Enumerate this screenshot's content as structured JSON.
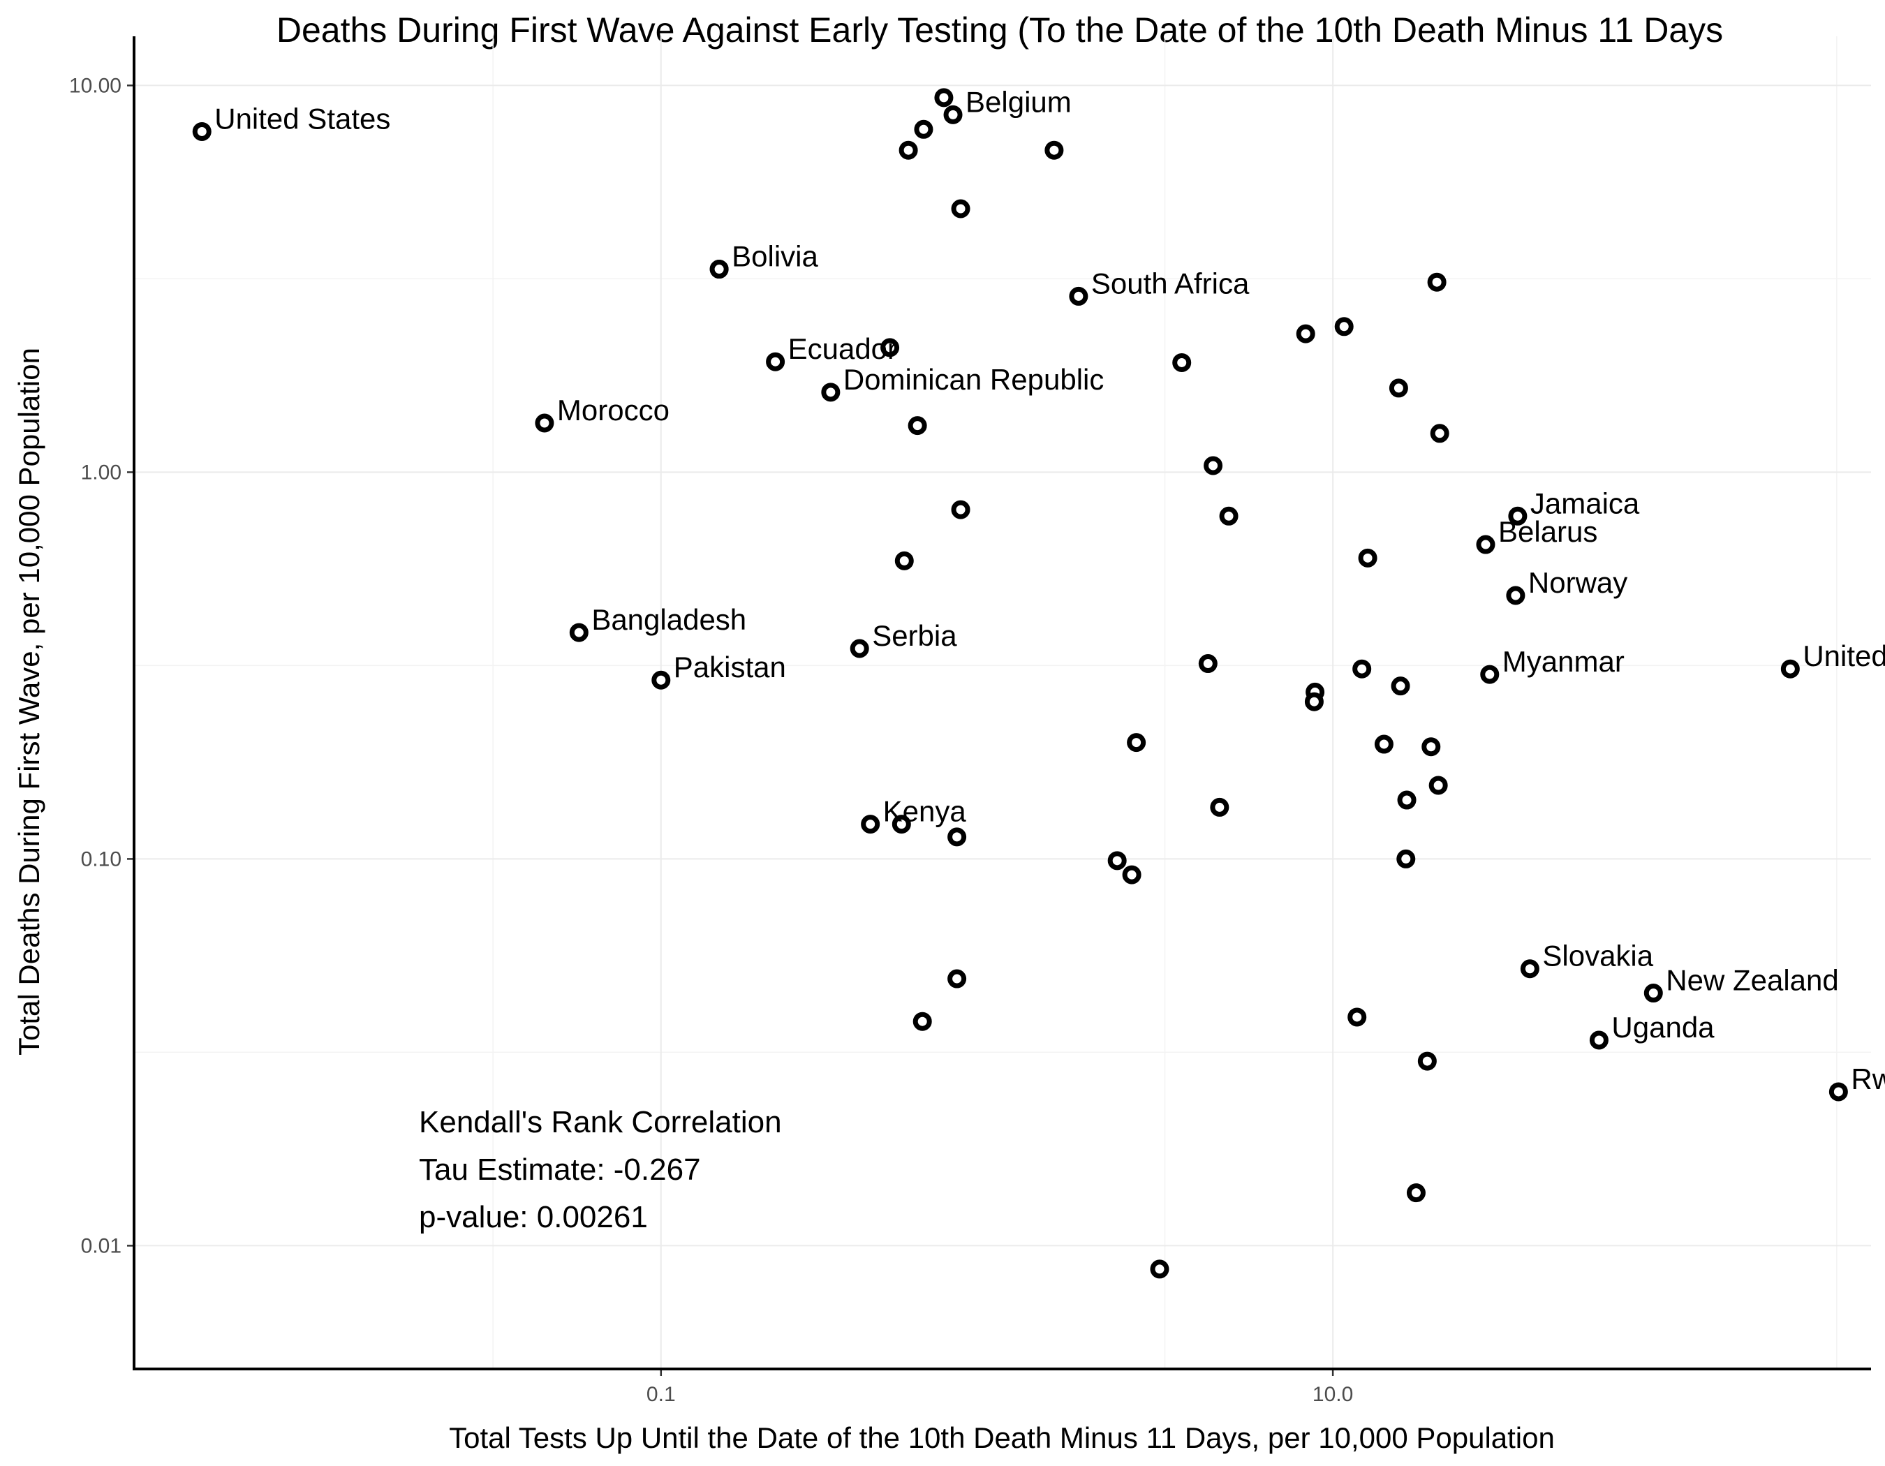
{
  "chart_data": {
    "type": "scatter",
    "title": "Deaths During First Wave Against  Early Testing (To the Date of the 10th Death Minus 11 Days",
    "xlabel": "Total Tests Up Until the Date of the 10th Death Minus 11 Days, per 10,000 Population",
    "ylabel": "Total Deaths During First Wave, per 10,000 Population",
    "x_scale": "log10",
    "y_scale": "log10",
    "xlim": [
      0.0027,
      400
    ],
    "ylim": [
      0.0048,
      13.4
    ],
    "x_ticks": [
      {
        "value": 0.1,
        "label": "0.1"
      },
      {
        "value": 10,
        "label": "10.0"
      }
    ],
    "y_ticks": [
      {
        "value": 0.01,
        "label": "0.01"
      },
      {
        "value": 0.1,
        "label": "0.10"
      },
      {
        "value": 1,
        "label": "1.00"
      },
      {
        "value": 10,
        "label": "10.00"
      }
    ],
    "grid": true,
    "annotation": {
      "lines": [
        "Kendall's Rank Correlation",
        "Tau Estimate: -0.267",
        "p-value: 0.00261"
      ]
    },
    "points": [
      {
        "x": 0.0043,
        "y": 7.6,
        "label": "United States"
      },
      {
        "x": 0.149,
        "y": 3.35,
        "label": "Bolivia"
      },
      {
        "x": 0.219,
        "y": 1.93,
        "label": "Ecuador"
      },
      {
        "x": 0.32,
        "y": 1.61,
        "label": "Dominican Republic"
      },
      {
        "x": 0.045,
        "y": 1.34,
        "label": "Morocco"
      },
      {
        "x": 0.057,
        "y": 0.385,
        "label": "Bangladesh"
      },
      {
        "x": 0.1,
        "y": 0.29,
        "label": "Pakistan"
      },
      {
        "x": 0.39,
        "y": 0.35,
        "label": "Serbia"
      },
      {
        "x": 0.42,
        "y": 0.123,
        "label": "Kenya"
      },
      {
        "x": 0.149,
        "y": 3.35,
        "label": ""
      },
      {
        "x": 0.695,
        "y": 9.3,
        "label": ""
      },
      {
        "x": 0.74,
        "y": 8.4,
        "label": "Belgium"
      },
      {
        "x": 0.605,
        "y": 7.7,
        "label": ""
      },
      {
        "x": 0.545,
        "y": 6.8,
        "label": ""
      },
      {
        "x": 1.48,
        "y": 6.8,
        "label": ""
      },
      {
        "x": 0.78,
        "y": 4.8,
        "label": ""
      },
      {
        "x": 1.75,
        "y": 2.85,
        "label": "South Africa"
      },
      {
        "x": 20.4,
        "y": 3.1,
        "label": ""
      },
      {
        "x": 10.8,
        "y": 2.38,
        "label": ""
      },
      {
        "x": 8.3,
        "y": 2.28,
        "label": ""
      },
      {
        "x": 0.48,
        "y": 2.1,
        "label": ""
      },
      {
        "x": 3.55,
        "y": 1.92,
        "label": ""
      },
      {
        "x": 15.7,
        "y": 1.65,
        "label": ""
      },
      {
        "x": 0.58,
        "y": 1.32,
        "label": ""
      },
      {
        "x": 20.8,
        "y": 1.26,
        "label": ""
      },
      {
        "x": 4.4,
        "y": 1.04,
        "label": ""
      },
      {
        "x": 0.78,
        "y": 0.8,
        "label": ""
      },
      {
        "x": 4.9,
        "y": 0.77,
        "label": ""
      },
      {
        "x": 35.5,
        "y": 0.77,
        "label": "Jamaica"
      },
      {
        "x": 28.5,
        "y": 0.65,
        "label": "Belarus"
      },
      {
        "x": 12.7,
        "y": 0.6,
        "label": ""
      },
      {
        "x": 0.53,
        "y": 0.59,
        "label": ""
      },
      {
        "x": 35.0,
        "y": 0.48,
        "label": "Norway"
      },
      {
        "x": 4.25,
        "y": 0.32,
        "label": ""
      },
      {
        "x": 12.2,
        "y": 0.31,
        "label": ""
      },
      {
        "x": 29.3,
        "y": 0.3,
        "label": "Myanmar"
      },
      {
        "x": 230,
        "y": 0.31,
        "label": "United"
      },
      {
        "x": 8.85,
        "y": 0.27,
        "label": ""
      },
      {
        "x": 15.9,
        "y": 0.28,
        "label": ""
      },
      {
        "x": 8.8,
        "y": 0.255,
        "label": ""
      },
      {
        "x": 2.6,
        "y": 0.2,
        "label": ""
      },
      {
        "x": 14.2,
        "y": 0.198,
        "label": ""
      },
      {
        "x": 19.6,
        "y": 0.195,
        "label": ""
      },
      {
        "x": 20.6,
        "y": 0.155,
        "label": ""
      },
      {
        "x": 16.6,
        "y": 0.142,
        "label": ""
      },
      {
        "x": 4.6,
        "y": 0.136,
        "label": ""
      },
      {
        "x": 0.52,
        "y": 0.123,
        "label": ""
      },
      {
        "x": 0.76,
        "y": 0.114,
        "label": ""
      },
      {
        "x": 2.28,
        "y": 0.099,
        "label": ""
      },
      {
        "x": 2.52,
        "y": 0.091,
        "label": ""
      },
      {
        "x": 16.5,
        "y": 0.1,
        "label": ""
      },
      {
        "x": 38.6,
        "y": 0.052,
        "label": "Slovakia"
      },
      {
        "x": 0.76,
        "y": 0.049,
        "label": ""
      },
      {
        "x": 90,
        "y": 0.045,
        "label": "New Zealand"
      },
      {
        "x": 0.6,
        "y": 0.038,
        "label": ""
      },
      {
        "x": 11.8,
        "y": 0.039,
        "label": ""
      },
      {
        "x": 62,
        "y": 0.034,
        "label": "Uganda"
      },
      {
        "x": 19.1,
        "y": 0.03,
        "label": ""
      },
      {
        "x": 320,
        "y": 0.025,
        "label": "Rwa"
      },
      {
        "x": 17.7,
        "y": 0.0137,
        "label": ""
      },
      {
        "x": 3.05,
        "y": 0.0087,
        "label": ""
      }
    ]
  }
}
